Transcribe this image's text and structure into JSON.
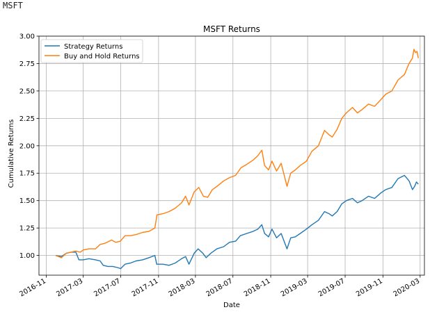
{
  "output_text": "MSFT",
  "chart_data": {
    "type": "line",
    "title": "MSFT Returns",
    "xlabel": "Date",
    "ylabel": "Cumulative Returns",
    "xlim": [
      "2016-10-08",
      "2020-03-15"
    ],
    "ylim": [
      0.82,
      3.0
    ],
    "x_ticks": [
      "2016-11",
      "2017-03",
      "2017-07",
      "2017-11",
      "2018-03",
      "2018-07",
      "2018-11",
      "2019-03",
      "2019-07",
      "2019-11",
      "2020-03"
    ],
    "y_ticks": [
      "1.00",
      "1.25",
      "1.50",
      "1.75",
      "2.00",
      "2.25",
      "2.50",
      "2.75",
      "3.00"
    ],
    "grid": true,
    "legend_position": "top-left",
    "series": [
      {
        "name": "Strategy Returns",
        "color": "#1f77b4",
        "points": [
          [
            "2016-12-01",
            1.0
          ],
          [
            "2016-12-20",
            0.99
          ],
          [
            "2017-01-05",
            1.02
          ],
          [
            "2017-01-20",
            1.03
          ],
          [
            "2017-02-05",
            1.03
          ],
          [
            "2017-02-15",
            0.96
          ],
          [
            "2017-03-01",
            0.96
          ],
          [
            "2017-03-20",
            0.97
          ],
          [
            "2017-04-10",
            0.96
          ],
          [
            "2017-04-25",
            0.95
          ],
          [
            "2017-05-05",
            0.91
          ],
          [
            "2017-05-20",
            0.9
          ],
          [
            "2017-06-05",
            0.9
          ],
          [
            "2017-06-20",
            0.89
          ],
          [
            "2017-07-01",
            0.88
          ],
          [
            "2017-07-15",
            0.92
          ],
          [
            "2017-08-01",
            0.93
          ],
          [
            "2017-08-20",
            0.95
          ],
          [
            "2017-09-10",
            0.96
          ],
          [
            "2017-10-01",
            0.98
          ],
          [
            "2017-10-20",
            1.0
          ],
          [
            "2017-10-26",
            0.92
          ],
          [
            "2017-11-15",
            0.92
          ],
          [
            "2017-12-05",
            0.91
          ],
          [
            "2017-12-25",
            0.93
          ],
          [
            "2018-01-15",
            0.97
          ],
          [
            "2018-01-28",
            0.99
          ],
          [
            "2018-02-08",
            0.92
          ],
          [
            "2018-02-25",
            1.02
          ],
          [
            "2018-03-10",
            1.06
          ],
          [
            "2018-03-25",
            1.02
          ],
          [
            "2018-04-05",
            0.98
          ],
          [
            "2018-04-20",
            1.02
          ],
          [
            "2018-05-10",
            1.06
          ],
          [
            "2018-06-01",
            1.08
          ],
          [
            "2018-06-20",
            1.12
          ],
          [
            "2018-07-10",
            1.13
          ],
          [
            "2018-07-25",
            1.18
          ],
          [
            "2018-08-15",
            1.2
          ],
          [
            "2018-09-05",
            1.22
          ],
          [
            "2018-09-20",
            1.24
          ],
          [
            "2018-10-03",
            1.28
          ],
          [
            "2018-10-12",
            1.2
          ],
          [
            "2018-10-25",
            1.17
          ],
          [
            "2018-11-05",
            1.24
          ],
          [
            "2018-11-20",
            1.16
          ],
          [
            "2018-12-05",
            1.2
          ],
          [
            "2018-12-24",
            1.06
          ],
          [
            "2019-01-05",
            1.16
          ],
          [
            "2019-01-20",
            1.17
          ],
          [
            "2019-02-05",
            1.2
          ],
          [
            "2019-02-25",
            1.24
          ],
          [
            "2019-03-15",
            1.28
          ],
          [
            "2019-04-05",
            1.32
          ],
          [
            "2019-04-25",
            1.4
          ],
          [
            "2019-05-10",
            1.38
          ],
          [
            "2019-05-20",
            1.36
          ],
          [
            "2019-06-05",
            1.4
          ],
          [
            "2019-06-20",
            1.47
          ],
          [
            "2019-07-05",
            1.5
          ],
          [
            "2019-07-25",
            1.52
          ],
          [
            "2019-08-10",
            1.48
          ],
          [
            "2019-08-25",
            1.5
          ],
          [
            "2019-09-15",
            1.54
          ],
          [
            "2019-10-05",
            1.52
          ],
          [
            "2019-10-25",
            1.57
          ],
          [
            "2019-11-10",
            1.6
          ],
          [
            "2019-11-30",
            1.62
          ],
          [
            "2019-12-20",
            1.7
          ],
          [
            "2020-01-10",
            1.73
          ],
          [
            "2020-01-25",
            1.68
          ],
          [
            "2020-02-05",
            1.6
          ],
          [
            "2020-02-12",
            1.63
          ],
          [
            "2020-02-18",
            1.67
          ],
          [
            "2020-02-24",
            1.65
          ]
        ]
      },
      {
        "name": "Buy and Hold Returns",
        "color": "#ff7f0e",
        "points": [
          [
            "2016-12-01",
            1.0
          ],
          [
            "2016-12-20",
            0.98
          ],
          [
            "2017-01-05",
            1.02
          ],
          [
            "2017-01-20",
            1.03
          ],
          [
            "2017-02-05",
            1.04
          ],
          [
            "2017-02-20",
            1.03
          ],
          [
            "2017-03-01",
            1.05
          ],
          [
            "2017-03-20",
            1.06
          ],
          [
            "2017-04-10",
            1.06
          ],
          [
            "2017-04-25",
            1.1
          ],
          [
            "2017-05-10",
            1.11
          ],
          [
            "2017-06-01",
            1.14
          ],
          [
            "2017-06-15",
            1.12
          ],
          [
            "2017-06-30",
            1.13
          ],
          [
            "2017-07-15",
            1.18
          ],
          [
            "2017-08-01",
            1.18
          ],
          [
            "2017-08-20",
            1.19
          ],
          [
            "2017-09-10",
            1.21
          ],
          [
            "2017-10-01",
            1.22
          ],
          [
            "2017-10-20",
            1.25
          ],
          [
            "2017-10-27",
            1.37
          ],
          [
            "2017-11-15",
            1.38
          ],
          [
            "2017-12-05",
            1.4
          ],
          [
            "2017-12-25",
            1.43
          ],
          [
            "2018-01-15",
            1.48
          ],
          [
            "2018-01-28",
            1.54
          ],
          [
            "2018-02-08",
            1.46
          ],
          [
            "2018-02-25",
            1.58
          ],
          [
            "2018-03-12",
            1.62
          ],
          [
            "2018-03-27",
            1.54
          ],
          [
            "2018-04-10",
            1.53
          ],
          [
            "2018-04-25",
            1.6
          ],
          [
            "2018-05-10",
            1.63
          ],
          [
            "2018-06-01",
            1.68
          ],
          [
            "2018-06-20",
            1.71
          ],
          [
            "2018-07-10",
            1.73
          ],
          [
            "2018-07-27",
            1.8
          ],
          [
            "2018-08-15",
            1.83
          ],
          [
            "2018-09-05",
            1.87
          ],
          [
            "2018-09-20",
            1.91
          ],
          [
            "2018-10-03",
            1.96
          ],
          [
            "2018-10-12",
            1.82
          ],
          [
            "2018-10-25",
            1.78
          ],
          [
            "2018-11-05",
            1.86
          ],
          [
            "2018-11-20",
            1.77
          ],
          [
            "2018-12-05",
            1.84
          ],
          [
            "2018-12-24",
            1.63
          ],
          [
            "2019-01-05",
            1.75
          ],
          [
            "2019-01-20",
            1.78
          ],
          [
            "2019-02-05",
            1.82
          ],
          [
            "2019-02-25",
            1.86
          ],
          [
            "2019-03-15",
            1.95
          ],
          [
            "2019-04-05",
            2.0
          ],
          [
            "2019-04-25",
            2.14
          ],
          [
            "2019-05-10",
            2.1
          ],
          [
            "2019-05-20",
            2.08
          ],
          [
            "2019-06-05",
            2.15
          ],
          [
            "2019-06-20",
            2.25
          ],
          [
            "2019-07-05",
            2.3
          ],
          [
            "2019-07-25",
            2.35
          ],
          [
            "2019-08-10",
            2.3
          ],
          [
            "2019-08-25",
            2.33
          ],
          [
            "2019-09-15",
            2.38
          ],
          [
            "2019-10-05",
            2.36
          ],
          [
            "2019-10-25",
            2.42
          ],
          [
            "2019-11-10",
            2.47
          ],
          [
            "2019-11-30",
            2.5
          ],
          [
            "2019-12-20",
            2.6
          ],
          [
            "2020-01-10",
            2.65
          ],
          [
            "2020-01-25",
            2.75
          ],
          [
            "2020-02-05",
            2.8
          ],
          [
            "2020-02-10",
            2.88
          ],
          [
            "2020-02-15",
            2.85
          ],
          [
            "2020-02-20",
            2.86
          ],
          [
            "2020-02-24",
            2.8
          ]
        ]
      }
    ]
  }
}
